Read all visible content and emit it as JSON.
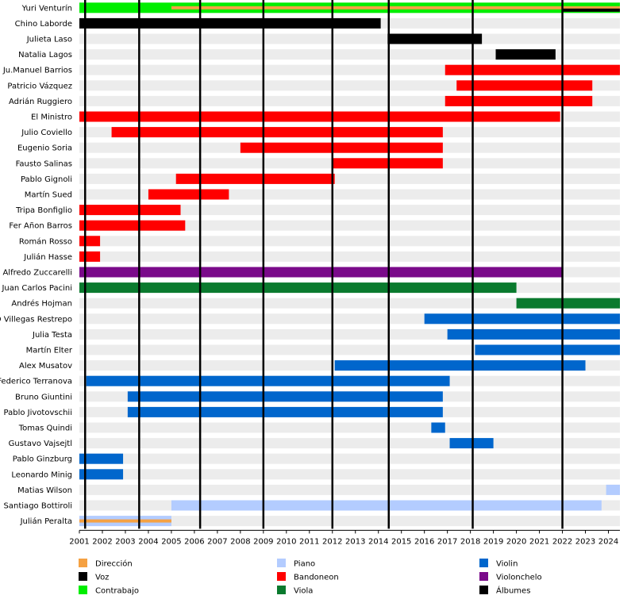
{
  "chart_data": {
    "type": "timeline",
    "x_axis": {
      "min": 2001.0,
      "max": 2024.5,
      "tick_labels": [
        "2001",
        "2002",
        "2003",
        "2004",
        "2005",
        "2006",
        "2007",
        "2008",
        "2009",
        "2010",
        "2011",
        "2012",
        "2013",
        "2014",
        "2015",
        "2016",
        "2017",
        "2018",
        "2019",
        "2020",
        "2021",
        "2022",
        "2023",
        "2024"
      ]
    },
    "categories": {
      "direccion": {
        "label": "Dirección",
        "color": "#f5a142"
      },
      "voz": {
        "label": "Voz",
        "color": "#000000"
      },
      "contrabajo": {
        "label": "Contrabajo",
        "color": "#00ee00"
      },
      "piano": {
        "label": "Piano",
        "color": "#b3ccff"
      },
      "bandoneon": {
        "label": "Bandoneon",
        "color": "#ff0000"
      },
      "viola": {
        "label": "Viola",
        "color": "#0a7a2e"
      },
      "violin": {
        "label": "Violin",
        "color": "#0066cc"
      },
      "violonchelo": {
        "label": "Violonchelo",
        "color": "#7a0a8a"
      },
      "albumes": {
        "label": "Álbumes",
        "color": "#000000"
      }
    },
    "legend_order": [
      [
        "direccion",
        "voz",
        "contrabajo"
      ],
      [
        "piano",
        "bandoneon",
        "viola"
      ],
      [
        "violin",
        "violonchelo",
        "albumes"
      ]
    ],
    "album_years": [
      2001.25,
      2003.6,
      2006.25,
      2009.0,
      2012.0,
      2014.45,
      2018.1,
      2022.0
    ],
    "members": [
      {
        "name": "Yuri Venturín",
        "bars": [
          {
            "cat": "contrabajo",
            "start": 2001.0,
            "end": 2024.5
          },
          {
            "cat": "direccion",
            "start": 2005.0,
            "end": 2022.05,
            "thin": true
          },
          {
            "cat": "direccion",
            "start": 2022.0,
            "end": 2024.5,
            "thin": true
          },
          {
            "cat": "voz",
            "start": 2022.0,
            "end": 2024.5,
            "thin": true,
            "offset": 3
          }
        ]
      },
      {
        "name": "Chino Laborde",
        "bars": [
          {
            "cat": "voz",
            "start": 2001.0,
            "end": 2014.1
          }
        ]
      },
      {
        "name": "Julieta Laso",
        "bars": [
          {
            "cat": "voz",
            "start": 2014.4,
            "end": 2018.5
          }
        ]
      },
      {
        "name": "Natalia Lagos",
        "bars": [
          {
            "cat": "voz",
            "start": 2019.1,
            "end": 2021.7
          }
        ]
      },
      {
        "name": "Ju.Manuel Barrios",
        "bars": [
          {
            "cat": "bandoneon",
            "start": 2016.9,
            "end": 2024.5
          }
        ]
      },
      {
        "name": "Patricio Vázquez",
        "bars": [
          {
            "cat": "bandoneon",
            "start": 2017.4,
            "end": 2023.3
          }
        ]
      },
      {
        "name": "Adrián Ruggiero",
        "bars": [
          {
            "cat": "bandoneon",
            "start": 2016.9,
            "end": 2023.3
          }
        ]
      },
      {
        "name": "El Ministro",
        "bars": [
          {
            "cat": "bandoneon",
            "start": 2001.0,
            "end": 2021.9
          }
        ]
      },
      {
        "name": "Julio Coviello",
        "bars": [
          {
            "cat": "bandoneon",
            "start": 2002.4,
            "end": 2016.8
          }
        ]
      },
      {
        "name": "Eugenio Soria",
        "bars": [
          {
            "cat": "bandoneon",
            "start": 2008.0,
            "end": 2016.8
          }
        ]
      },
      {
        "name": "Fausto Salinas",
        "bars": [
          {
            "cat": "bandoneon",
            "start": 2012.0,
            "end": 2016.8
          }
        ]
      },
      {
        "name": "Pablo Gignoli",
        "bars": [
          {
            "cat": "bandoneon",
            "start": 2005.2,
            "end": 2012.1
          }
        ]
      },
      {
        "name": "Martín Sued",
        "bars": [
          {
            "cat": "bandoneon",
            "start": 2004.0,
            "end": 2007.5
          }
        ]
      },
      {
        "name": "Tripa Bonfiglio",
        "bars": [
          {
            "cat": "bandoneon",
            "start": 2001.0,
            "end": 2005.4
          }
        ]
      },
      {
        "name": "Fer Añon Barros",
        "bars": [
          {
            "cat": "bandoneon",
            "start": 2001.0,
            "end": 2005.6
          }
        ]
      },
      {
        "name": "Román Rosso",
        "bars": [
          {
            "cat": "bandoneon",
            "start": 2001.0,
            "end": 2001.9
          }
        ]
      },
      {
        "name": "Julián Hasse",
        "bars": [
          {
            "cat": "bandoneon",
            "start": 2001.0,
            "end": 2001.9
          }
        ]
      },
      {
        "name": "Alfredo Zuccarelli",
        "bars": [
          {
            "cat": "violonchelo",
            "start": 2001.0,
            "end": 2022.0
          }
        ]
      },
      {
        "name": "Juan Carlos Pacini",
        "bars": [
          {
            "cat": "viola",
            "start": 2001.0,
            "end": 2020.0
          }
        ]
      },
      {
        "name": "Andrés Hojman",
        "bars": [
          {
            "cat": "viola",
            "start": 2020.0,
            "end": 2024.5
          }
        ]
      },
      {
        "name": "D Villegas Restrepo",
        "bars": [
          {
            "cat": "violin",
            "start": 2016.0,
            "end": 2024.5
          }
        ]
      },
      {
        "name": "Julia Testa",
        "bars": [
          {
            "cat": "violin",
            "start": 2017.0,
            "end": 2024.5
          }
        ]
      },
      {
        "name": "Martín Elter",
        "bars": [
          {
            "cat": "violin",
            "start": 2018.2,
            "end": 2024.5
          }
        ]
      },
      {
        "name": "Alex Musatov",
        "bars": [
          {
            "cat": "violin",
            "start": 2012.1,
            "end": 2023.0
          }
        ]
      },
      {
        "name": "Federico Terranova",
        "bars": [
          {
            "cat": "violin",
            "start": 2001.3,
            "end": 2017.1
          }
        ]
      },
      {
        "name": "Bruno Giuntini",
        "bars": [
          {
            "cat": "violin",
            "start": 2003.1,
            "end": 2016.8
          }
        ]
      },
      {
        "name": "Pablo Jivotovschii",
        "bars": [
          {
            "cat": "violin",
            "start": 2003.1,
            "end": 2016.8
          }
        ]
      },
      {
        "name": "Tomas Quindi",
        "bars": [
          {
            "cat": "violin",
            "start": 2016.3,
            "end": 2016.9
          }
        ]
      },
      {
        "name": "Gustavo Vajsejtl",
        "bars": [
          {
            "cat": "violin",
            "start": 2017.1,
            "end": 2019.0
          }
        ]
      },
      {
        "name": "Pablo Ginzburg",
        "bars": [
          {
            "cat": "violin",
            "start": 2001.0,
            "end": 2002.9
          }
        ]
      },
      {
        "name": "Leonardo Minig",
        "bars": [
          {
            "cat": "violin",
            "start": 2001.0,
            "end": 2002.9
          }
        ]
      },
      {
        "name": "Matias Wilson",
        "bars": [
          {
            "cat": "piano",
            "start": 2023.9,
            "end": 2024.5
          }
        ]
      },
      {
        "name": "Santiago Bottiroli",
        "bars": [
          {
            "cat": "piano",
            "start": 2005.0,
            "end": 2023.7
          }
        ]
      },
      {
        "name": "Julián Peralta",
        "bars": [
          {
            "cat": "piano",
            "start": 2001.0,
            "end": 2005.0
          },
          {
            "cat": "direccion",
            "start": 2001.0,
            "end": 2005.0,
            "thin": true
          }
        ]
      }
    ]
  }
}
